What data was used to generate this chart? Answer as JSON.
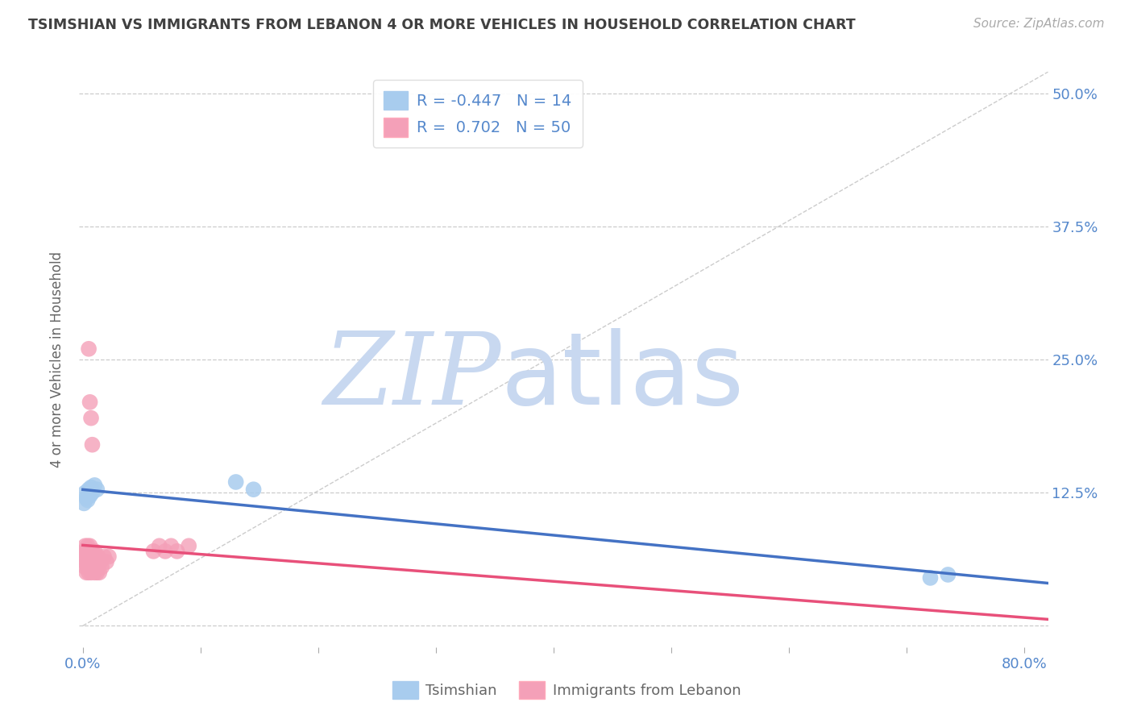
{
  "title": "TSIMSHIAN VS IMMIGRANTS FROM LEBANON 4 OR MORE VEHICLES IN HOUSEHOLD CORRELATION CHART",
  "source_text": "Source: ZipAtlas.com",
  "ylabel": "4 or more Vehicles in Household",
  "xlim": [
    -0.003,
    0.82
  ],
  "ylim": [
    -0.02,
    0.52
  ],
  "ytick_vals": [
    0.0,
    0.125,
    0.25,
    0.375,
    0.5
  ],
  "ytick_labels": [
    "",
    "12.5%",
    "25.0%",
    "37.5%",
    "50.0%"
  ],
  "xtick_vals": [
    0.0,
    0.1,
    0.2,
    0.3,
    0.4,
    0.5,
    0.6,
    0.7,
    0.8
  ],
  "xtick_labels": [
    "0.0%",
    "",
    "",
    "",
    "",
    "",
    "",
    "",
    "80.0%"
  ],
  "tsimshian": {
    "name": "Tsimshian",
    "R": -0.447,
    "N": 14,
    "dot_color": "#A8CCEE",
    "line_color": "#4472C4",
    "x": [
      0.001,
      0.002,
      0.003,
      0.004,
      0.005,
      0.006,
      0.007,
      0.008,
      0.01,
      0.012,
      0.13,
      0.145,
      0.72,
      0.735
    ],
    "y": [
      0.115,
      0.125,
      0.12,
      0.118,
      0.128,
      0.122,
      0.13,
      0.125,
      0.132,
      0.128,
      0.135,
      0.128,
      0.045,
      0.048
    ]
  },
  "lebanon": {
    "name": "Immigrants from Lebanon",
    "R": 0.702,
    "N": 50,
    "dot_color": "#F4A0B8",
    "line_color": "#E8507A",
    "x": [
      0.001,
      0.001,
      0.002,
      0.002,
      0.002,
      0.003,
      0.003,
      0.003,
      0.004,
      0.004,
      0.004,
      0.005,
      0.005,
      0.005,
      0.006,
      0.006,
      0.006,
      0.007,
      0.007,
      0.007,
      0.008,
      0.008,
      0.008,
      0.009,
      0.009,
      0.01,
      0.01,
      0.01,
      0.011,
      0.011,
      0.012,
      0.012,
      0.013,
      0.013,
      0.014,
      0.015,
      0.016,
      0.018,
      0.02,
      0.022,
      0.06,
      0.065,
      0.07,
      0.075,
      0.08,
      0.09,
      0.005,
      0.006,
      0.007,
      0.008
    ],
    "y": [
      0.06,
      0.07,
      0.055,
      0.065,
      0.075,
      0.05,
      0.06,
      0.07,
      0.055,
      0.065,
      0.075,
      0.05,
      0.06,
      0.07,
      0.055,
      0.065,
      0.075,
      0.05,
      0.06,
      0.07,
      0.055,
      0.06,
      0.07,
      0.055,
      0.065,
      0.05,
      0.06,
      0.07,
      0.055,
      0.065,
      0.05,
      0.06,
      0.055,
      0.065,
      0.05,
      0.06,
      0.055,
      0.065,
      0.06,
      0.065,
      0.07,
      0.075,
      0.07,
      0.075,
      0.07,
      0.075,
      0.26,
      0.21,
      0.195,
      0.17
    ]
  },
  "background_color": "#FFFFFF",
  "grid_color": "#CCCCCC",
  "title_color": "#404040",
  "axis_color": "#5588CC",
  "watermark_color": "#C8D8F0"
}
